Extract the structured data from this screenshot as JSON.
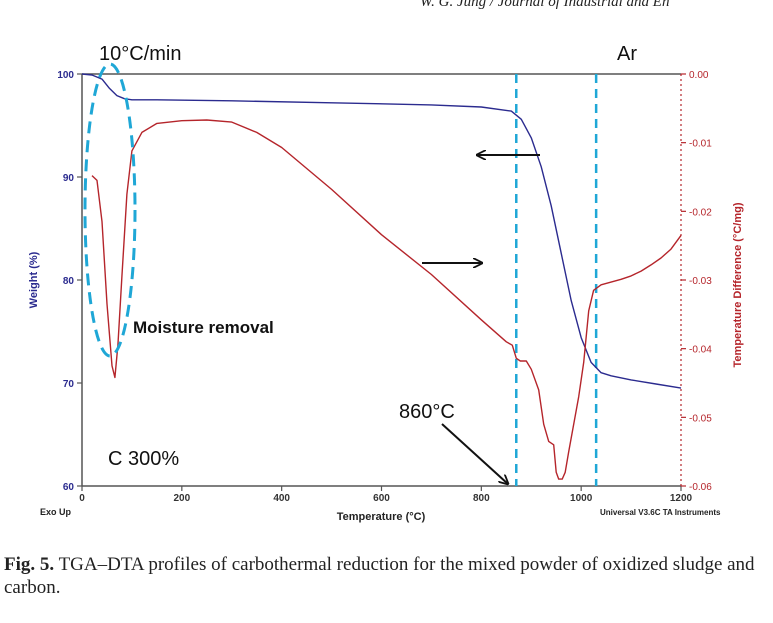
{
  "header": {
    "running_head": "W. G. Jung / Journal of Industrial and En"
  },
  "caption": {
    "label": "Fig. 5.",
    "text": "TGA–DTA profiles of carbothermal reduction for the mixed powder of oxidized sludge and carbon."
  },
  "chart_data": {
    "type": "line",
    "title": "",
    "xlabel": "Temperature (°C)",
    "ylabel": "Weight (%)",
    "y2label": "Temperature Difference (°C/mg)",
    "xlim": [
      0,
      1200
    ],
    "ylim": [
      60,
      100
    ],
    "y2lim": [
      -0.06,
      0.0
    ],
    "x_ticks": [
      0,
      200,
      400,
      600,
      800,
      1000,
      1200
    ],
    "y_ticks": [
      60,
      70,
      80,
      90,
      100
    ],
    "y2_ticks": [
      0.0,
      -0.01,
      -0.02,
      -0.03,
      -0.04,
      -0.05,
      -0.06
    ],
    "y2_tick_labels": [
      "0.00",
      "-0.01",
      "-0.02",
      "-0.03",
      "-0.04",
      "-0.05",
      "-0.06"
    ],
    "colors": {
      "weight": "#2b2b8f",
      "dta": "#b5252b",
      "markers": "#1fa7d6",
      "axis": "#555555"
    },
    "series": [
      {
        "name": "Weight",
        "axis": "left",
        "x": [
          0,
          20,
          40,
          55,
          70,
          85,
          100,
          150,
          300,
          500,
          700,
          800,
          860,
          880,
          900,
          920,
          940,
          960,
          980,
          1000,
          1020,
          1040,
          1060,
          1100,
          1150,
          1200
        ],
        "y": [
          100,
          99.9,
          99.5,
          98.6,
          97.9,
          97.6,
          97.5,
          97.5,
          97.4,
          97.2,
          97.0,
          96.8,
          96.4,
          95.6,
          93.8,
          91.0,
          87.2,
          82.6,
          78.0,
          74.4,
          72.0,
          71.0,
          70.7,
          70.3,
          69.9,
          69.5
        ]
      },
      {
        "name": "DTA",
        "axis": "right",
        "x": [
          20,
          30,
          40,
          50,
          60,
          66,
          72,
          80,
          90,
          100,
          120,
          150,
          200,
          250,
          300,
          350,
          400,
          500,
          600,
          700,
          800,
          850,
          862,
          870,
          878,
          890,
          900,
          915,
          925,
          935,
          945,
          950,
          955,
          962,
          968,
          975,
          985,
          995,
          1005,
          1015,
          1025,
          1040,
          1060,
          1080,
          1100,
          1120,
          1140,
          1160,
          1180,
          1200
        ],
        "y": [
          -0.0148,
          -0.0155,
          -0.0215,
          -0.0335,
          -0.0425,
          -0.0442,
          -0.0395,
          -0.0295,
          -0.0175,
          -0.0112,
          -0.0085,
          -0.0072,
          -0.0068,
          -0.0067,
          -0.007,
          -0.0085,
          -0.0107,
          -0.0168,
          -0.0234,
          -0.0292,
          -0.0358,
          -0.039,
          -0.0395,
          -0.0414,
          -0.0418,
          -0.0418,
          -0.043,
          -0.046,
          -0.051,
          -0.0535,
          -0.054,
          -0.058,
          -0.059,
          -0.059,
          -0.058,
          -0.055,
          -0.051,
          -0.047,
          -0.042,
          -0.0345,
          -0.0315,
          -0.0307,
          -0.0303,
          -0.0299,
          -0.0294,
          -0.0287,
          -0.0278,
          -0.0268,
          -0.0255,
          -0.0235
        ]
      }
    ],
    "annotations": {
      "rate": "10°C/min",
      "atmosphere": "Ar",
      "moisture": "Moisture removal",
      "onset": "860°C",
      "carbon": "C 300%",
      "exo": "Exo Up",
      "software": "Universal V3.6C TA Instruments"
    },
    "vertical_markers_x": [
      870,
      1030
    ],
    "onset_temperature": 860
  }
}
